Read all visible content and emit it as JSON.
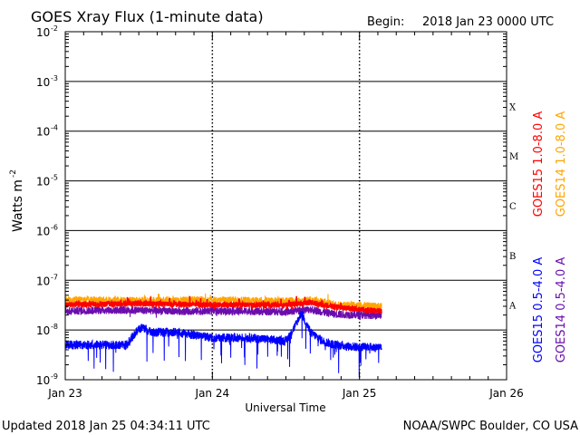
{
  "chart_data": {
    "type": "line",
    "title": "GOES Xray Flux (1-minute data)",
    "begin_label": "Begin:",
    "begin_value": "2018 Jan 23 0000 UTC",
    "xlabel": "Universal Time",
    "ylabel": "Watts m",
    "ylabel_exp": "-2",
    "yscale": "log",
    "ylim": [
      1e-09,
      0.01
    ],
    "xlim": [
      0,
      72
    ],
    "x_unit": "hours since 2018 Jan 23 00:00 UTC",
    "x_ticks": [
      {
        "hour": 0,
        "label": "Jan 23"
      },
      {
        "hour": 24,
        "label": "Jan 24"
      },
      {
        "hour": 48,
        "label": "Jan 25"
      },
      {
        "hour": 72,
        "label": "Jan 26"
      }
    ],
    "y_ticks": [
      {
        "exp": -2,
        "base": "10",
        "sup": "-2"
      },
      {
        "exp": -3,
        "base": "10",
        "sup": "-3"
      },
      {
        "exp": -4,
        "base": "10",
        "sup": "-4"
      },
      {
        "exp": -5,
        "base": "10",
        "sup": "-5"
      },
      {
        "exp": -6,
        "base": "10",
        "sup": "-6"
      },
      {
        "exp": -7,
        "base": "10",
        "sup": "-7"
      },
      {
        "exp": -8,
        "base": "10",
        "sup": "-8"
      },
      {
        "exp": -9,
        "base": "10",
        "sup": "-9"
      }
    ],
    "flare_classes": [
      {
        "label": "X",
        "exp": -4
      },
      {
        "label": "M",
        "exp": -5
      },
      {
        "label": "C",
        "exp": -6
      },
      {
        "label": "B",
        "exp": -7
      },
      {
        "label": "A",
        "exp": -8
      }
    ],
    "series": [
      {
        "name": "GOES15 1.0-8.0 A",
        "color": "#ff0000",
        "x": [
          0,
          6,
          12,
          18,
          24,
          30,
          36,
          40,
          42,
          44,
          48,
          51.6
        ],
        "y": [
          3.2e-08,
          3.3e-08,
          3.4e-08,
          3.3e-08,
          3.2e-08,
          3.2e-08,
          3.2e-08,
          3.6e-08,
          3.2e-08,
          2.9e-08,
          2.6e-08,
          2.4e-08
        ]
      },
      {
        "name": "GOES14 1.0-8.0 A",
        "color": "#ffa500",
        "x": [
          0,
          6,
          12,
          18,
          24,
          30,
          36,
          40,
          42,
          44,
          48,
          51.6
        ],
        "y": [
          4e-08,
          4e-08,
          3.9e-08,
          4e-08,
          4e-08,
          3.9e-08,
          3.8e-08,
          4e-08,
          3.7e-08,
          3.3e-08,
          3.1e-08,
          3e-08
        ]
      },
      {
        "name": "GOES15 0.5-4.0 A",
        "color": "#0000ff",
        "x": [
          0,
          6,
          10,
          11.5,
          12.5,
          14,
          18,
          24,
          30,
          36,
          37.5,
          38.5,
          40,
          42,
          44,
          48,
          51.6
        ],
        "y": [
          5e-09,
          5e-09,
          5e-09,
          9e-09,
          1.15e-08,
          9e-09,
          9e-09,
          7e-09,
          7e-09,
          6e-09,
          1.2e-08,
          2.2e-08,
          9e-09,
          6e-09,
          5e-09,
          4.5e-09,
          4.5e-09
        ]
      },
      {
        "name": "GOES14 0.5-4.0 A",
        "color": "#6a0dad",
        "x": [
          0,
          6,
          12,
          18,
          24,
          30,
          36,
          40,
          42,
          44,
          48,
          51.6
        ],
        "y": [
          2.4e-08,
          2.5e-08,
          2.5e-08,
          2.4e-08,
          2.4e-08,
          2.4e-08,
          2.3e-08,
          2.6e-08,
          2.3e-08,
          2.1e-08,
          2e-08,
          2e-08
        ]
      }
    ]
  },
  "footer": {
    "updated": "Updated 2018 Jan 25 04:34:11 UTC",
    "credit": "NOAA/SWPC Boulder, CO USA"
  }
}
